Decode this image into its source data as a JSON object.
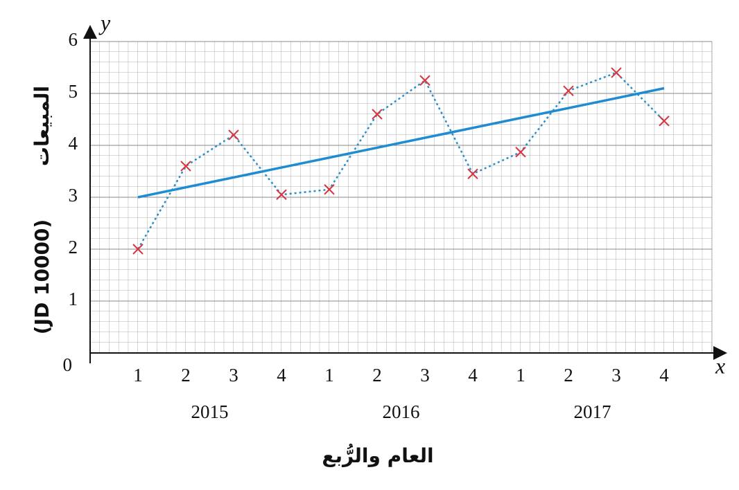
{
  "chart_data": {
    "type": "line",
    "categories": [
      "1",
      "2",
      "3",
      "4",
      "1",
      "2",
      "3",
      "4",
      "1",
      "2",
      "3",
      "4"
    ],
    "group_labels": [
      "2015",
      "2016",
      "2017"
    ],
    "values": [
      2.0,
      3.6,
      4.2,
      3.05,
      3.15,
      4.6,
      5.25,
      3.45,
      3.87,
      5.05,
      5.4,
      4.47
    ],
    "color": "#2a8fc9",
    "marker_color": "#d9343f",
    "trend_line": {
      "values": [
        3.0,
        5.1
      ],
      "color": "#1f8bd0"
    },
    "ylim": [
      0,
      6
    ],
    "yticks": [
      0,
      1,
      2,
      3,
      4,
      5,
      6
    ],
    "grid": true,
    "x_axis_letter": "x",
    "y_axis_letter": "y",
    "xlabel": "العام والرُّبع",
    "ylabel": "المبيعات",
    "ylabel_unit": "(JD 10000)"
  }
}
